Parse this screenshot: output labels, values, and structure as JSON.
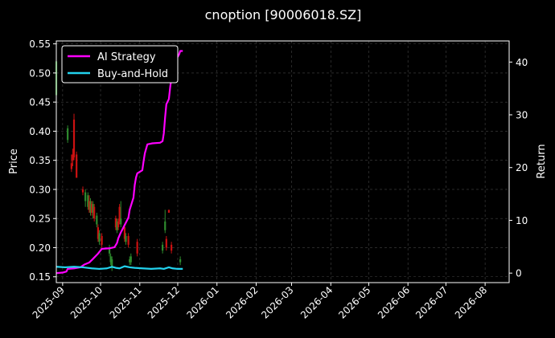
{
  "chart_data": {
    "type": "line",
    "title": "cnoption [90006018.SZ]",
    "xlabel": "",
    "ylabel_left": "Price",
    "ylabel_right": "Return",
    "x_ticks": [
      "2025-09",
      "2025-10",
      "2025-11",
      "2025-12",
      "2026-01",
      "2026-02",
      "2026-03",
      "2026-04",
      "2026-05",
      "2026-06",
      "2026-07",
      "2026-08"
    ],
    "x_range": [
      "2025-08-27",
      "2026-08-20"
    ],
    "ylim_left": [
      0.14,
      0.555
    ],
    "ylim_right": [
      -1.8,
      44
    ],
    "yticks_left": [
      "0.15",
      "0.20",
      "0.25",
      "0.30",
      "0.35",
      "0.40",
      "0.45",
      "0.50",
      "0.55"
    ],
    "yticks_right": [
      "0",
      "10",
      "20",
      "30",
      "40"
    ],
    "legend": {
      "placement": "top-left",
      "entries": [
        "AI Strategy",
        "Buy-and-Hold"
      ]
    },
    "grid": true,
    "colors": {
      "background": "#000000",
      "ai_strategy": "#ff00ff",
      "buy_hold": "#22d3ee",
      "candle_up": "#2e8b2e",
      "candle_down": "#cc1111",
      "grid": "#444444"
    },
    "series": [
      {
        "name": "AI Strategy",
        "axis": "right",
        "points": [
          [
            "2025-08-27",
            0.0
          ],
          [
            "2025-09-01",
            0.1
          ],
          [
            "2025-09-04",
            0.3
          ],
          [
            "2025-09-05",
            0.8
          ],
          [
            "2025-09-10",
            0.9
          ],
          [
            "2025-09-15",
            1.1
          ],
          [
            "2025-09-18",
            1.6
          ],
          [
            "2025-09-22",
            2.0
          ],
          [
            "2025-09-25",
            2.7
          ],
          [
            "2025-09-29",
            3.7
          ],
          [
            "2025-10-02",
            4.6
          ],
          [
            "2025-10-08",
            4.7
          ],
          [
            "2025-10-12",
            4.9
          ],
          [
            "2025-10-14",
            5.7
          ],
          [
            "2025-10-15",
            6.6
          ],
          [
            "2025-10-17",
            7.7
          ],
          [
            "2025-10-20",
            9.1
          ],
          [
            "2025-10-23",
            10.5
          ],
          [
            "2025-10-24",
            12.0
          ],
          [
            "2025-10-27",
            14.3
          ],
          [
            "2025-10-28",
            16.7
          ],
          [
            "2025-10-29",
            18.1
          ],
          [
            "2025-10-30",
            18.9
          ],
          [
            "2025-11-03",
            19.5
          ],
          [
            "2025-11-04",
            21.2
          ],
          [
            "2025-11-05",
            22.7
          ],
          [
            "2025-11-07",
            24.4
          ],
          [
            "2025-11-11",
            24.6
          ],
          [
            "2025-11-17",
            24.7
          ],
          [
            "2025-11-19",
            25.0
          ],
          [
            "2025-11-20",
            26.5
          ],
          [
            "2025-11-21",
            29.5
          ],
          [
            "2025-11-22",
            32.0
          ],
          [
            "2025-11-24",
            33.0
          ],
          [
            "2025-11-25",
            35.2
          ],
          [
            "2025-11-26",
            37.0
          ],
          [
            "2025-11-27",
            38.0
          ],
          [
            "2025-11-28",
            40.5
          ],
          [
            "2025-12-01",
            41.0
          ],
          [
            "2025-12-02",
            41.4
          ],
          [
            "2025-12-03",
            42.1
          ],
          [
            "2025-12-05",
            42.1
          ]
        ]
      },
      {
        "name": "Buy-and-Hold",
        "axis": "right",
        "points": [
          [
            "2025-08-27",
            1.2
          ],
          [
            "2025-09-03",
            1.1
          ],
          [
            "2025-09-10",
            1.2
          ],
          [
            "2025-09-17",
            1.1
          ],
          [
            "2025-09-24",
            0.9
          ],
          [
            "2025-09-30",
            0.8
          ],
          [
            "2025-10-06",
            0.9
          ],
          [
            "2025-10-10",
            1.2
          ],
          [
            "2025-10-13",
            1.0
          ],
          [
            "2025-10-16",
            0.9
          ],
          [
            "2025-10-20",
            1.3
          ],
          [
            "2025-10-24",
            1.1
          ],
          [
            "2025-10-28",
            1.0
          ],
          [
            "2025-11-03",
            0.9
          ],
          [
            "2025-11-10",
            0.8
          ],
          [
            "2025-11-17",
            0.9
          ],
          [
            "2025-11-20",
            0.8
          ],
          [
            "2025-11-24",
            1.1
          ],
          [
            "2025-11-27",
            0.9
          ],
          [
            "2025-12-01",
            0.8
          ],
          [
            "2025-12-05",
            0.8
          ]
        ]
      }
    ],
    "candles": [
      [
        "2025-08-27",
        0.462,
        0.52,
        0.45,
        0.53
      ],
      [
        "2025-09-05",
        0.385,
        0.405,
        0.38,
        0.41
      ],
      [
        "2025-09-08",
        0.345,
        0.335,
        0.33,
        0.36
      ],
      [
        "2025-09-09",
        0.36,
        0.35,
        0.34,
        0.37
      ],
      [
        "2025-09-10",
        0.42,
        0.355,
        0.35,
        0.43
      ],
      [
        "2025-09-12",
        0.36,
        0.32,
        0.32,
        0.365
      ],
      [
        "2025-09-17",
        0.3,
        0.295,
        0.29,
        0.305
      ],
      [
        "2025-09-19",
        0.28,
        0.295,
        0.27,
        0.3
      ],
      [
        "2025-09-21",
        0.27,
        0.29,
        0.265,
        0.295
      ],
      [
        "2025-09-22",
        0.28,
        0.265,
        0.26,
        0.29
      ],
      [
        "2025-09-23",
        0.26,
        0.28,
        0.255,
        0.285
      ],
      [
        "2025-09-24",
        0.275,
        0.26,
        0.255,
        0.28
      ],
      [
        "2025-09-25",
        0.26,
        0.275,
        0.25,
        0.28
      ],
      [
        "2025-09-26",
        0.27,
        0.25,
        0.245,
        0.275
      ],
      [
        "2025-09-28",
        0.24,
        0.255,
        0.235,
        0.26
      ],
      [
        "2025-09-29",
        0.235,
        0.215,
        0.21,
        0.24
      ],
      [
        "2025-09-30",
        0.21,
        0.225,
        0.205,
        0.23
      ],
      [
        "2025-10-02",
        0.22,
        0.205,
        0.2,
        0.225
      ],
      [
        "2025-10-08",
        0.19,
        0.2,
        0.185,
        0.205
      ],
      [
        "2025-10-09",
        0.175,
        0.185,
        0.17,
        0.19
      ],
      [
        "2025-10-10",
        0.165,
        0.18,
        0.16,
        0.185
      ],
      [
        "2025-10-13",
        0.25,
        0.235,
        0.23,
        0.255
      ],
      [
        "2025-10-14",
        0.23,
        0.245,
        0.225,
        0.25
      ],
      [
        "2025-10-15",
        0.245,
        0.235,
        0.23,
        0.25
      ],
      [
        "2025-10-16",
        0.27,
        0.245,
        0.24,
        0.275
      ],
      [
        "2025-10-17",
        0.24,
        0.25,
        0.235,
        0.28
      ],
      [
        "2025-10-20",
        0.235,
        0.215,
        0.21,
        0.24
      ],
      [
        "2025-10-21",
        0.21,
        0.22,
        0.205,
        0.225
      ],
      [
        "2025-10-23",
        0.22,
        0.205,
        0.2,
        0.225
      ],
      [
        "2025-10-24",
        0.175,
        0.18,
        0.17,
        0.185
      ],
      [
        "2025-10-25",
        0.175,
        0.185,
        0.17,
        0.19
      ],
      [
        "2025-10-30",
        0.21,
        0.19,
        0.185,
        0.215
      ],
      [
        "2025-11-19",
        0.195,
        0.205,
        0.19,
        0.21
      ],
      [
        "2025-11-21",
        0.23,
        0.245,
        0.225,
        0.265
      ],
      [
        "2025-11-22",
        0.215,
        0.2,
        0.195,
        0.22
      ],
      [
        "2025-11-24",
        0.265,
        0.26,
        0.26,
        0.265
      ],
      [
        "2025-11-26",
        0.205,
        0.195,
        0.19,
        0.21
      ],
      [
        "2025-12-03",
        0.175,
        0.18,
        0.17,
        0.185
      ]
    ]
  }
}
